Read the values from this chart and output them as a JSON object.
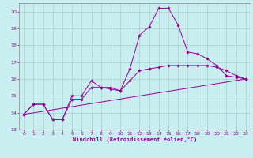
{
  "xlabel": "Windchill (Refroidissement éolien,°C)",
  "bg_color": "#c8eef0",
  "grid_color": "#aacccc",
  "line_color": "#990099",
  "spine_color": "#888888",
  "xlim": [
    -0.5,
    23.5
  ],
  "ylim": [
    13,
    20.5
  ],
  "yticks": [
    13,
    14,
    15,
    16,
    17,
    18,
    19,
    20
  ],
  "xticks": [
    0,
    1,
    2,
    3,
    4,
    5,
    6,
    7,
    8,
    9,
    10,
    11,
    12,
    13,
    14,
    15,
    16,
    17,
    18,
    19,
    20,
    21,
    22,
    23
  ],
  "series": [
    {
      "x": [
        0,
        1,
        2,
        3,
        4,
        5,
        6,
        7,
        8,
        9,
        10,
        11,
        12,
        13,
        14,
        15,
        16,
        17,
        18,
        19,
        20,
        21,
        22,
        23
      ],
      "y": [
        13.9,
        14.5,
        14.5,
        13.6,
        13.6,
        15.0,
        15.0,
        15.9,
        15.5,
        15.4,
        15.3,
        16.6,
        18.6,
        19.1,
        20.2,
        20.2,
        19.2,
        17.6,
        17.5,
        17.2,
        16.8,
        16.2,
        16.1,
        16.0
      ],
      "marker": true
    },
    {
      "x": [
        0,
        1,
        2,
        3,
        4,
        5,
        6,
        7,
        8,
        9,
        10,
        11,
        12,
        13,
        14,
        15,
        16,
        17,
        18,
        19,
        20,
        21,
        22,
        23
      ],
      "y": [
        13.9,
        14.5,
        14.5,
        13.6,
        13.6,
        14.8,
        14.8,
        15.5,
        15.5,
        15.5,
        15.3,
        15.9,
        16.5,
        16.6,
        16.7,
        16.8,
        16.8,
        16.8,
        16.8,
        16.8,
        16.7,
        16.5,
        16.2,
        16.0
      ],
      "marker": true
    },
    {
      "x": [
        0,
        23
      ],
      "y": [
        13.9,
        16.0
      ],
      "marker": false
    }
  ]
}
